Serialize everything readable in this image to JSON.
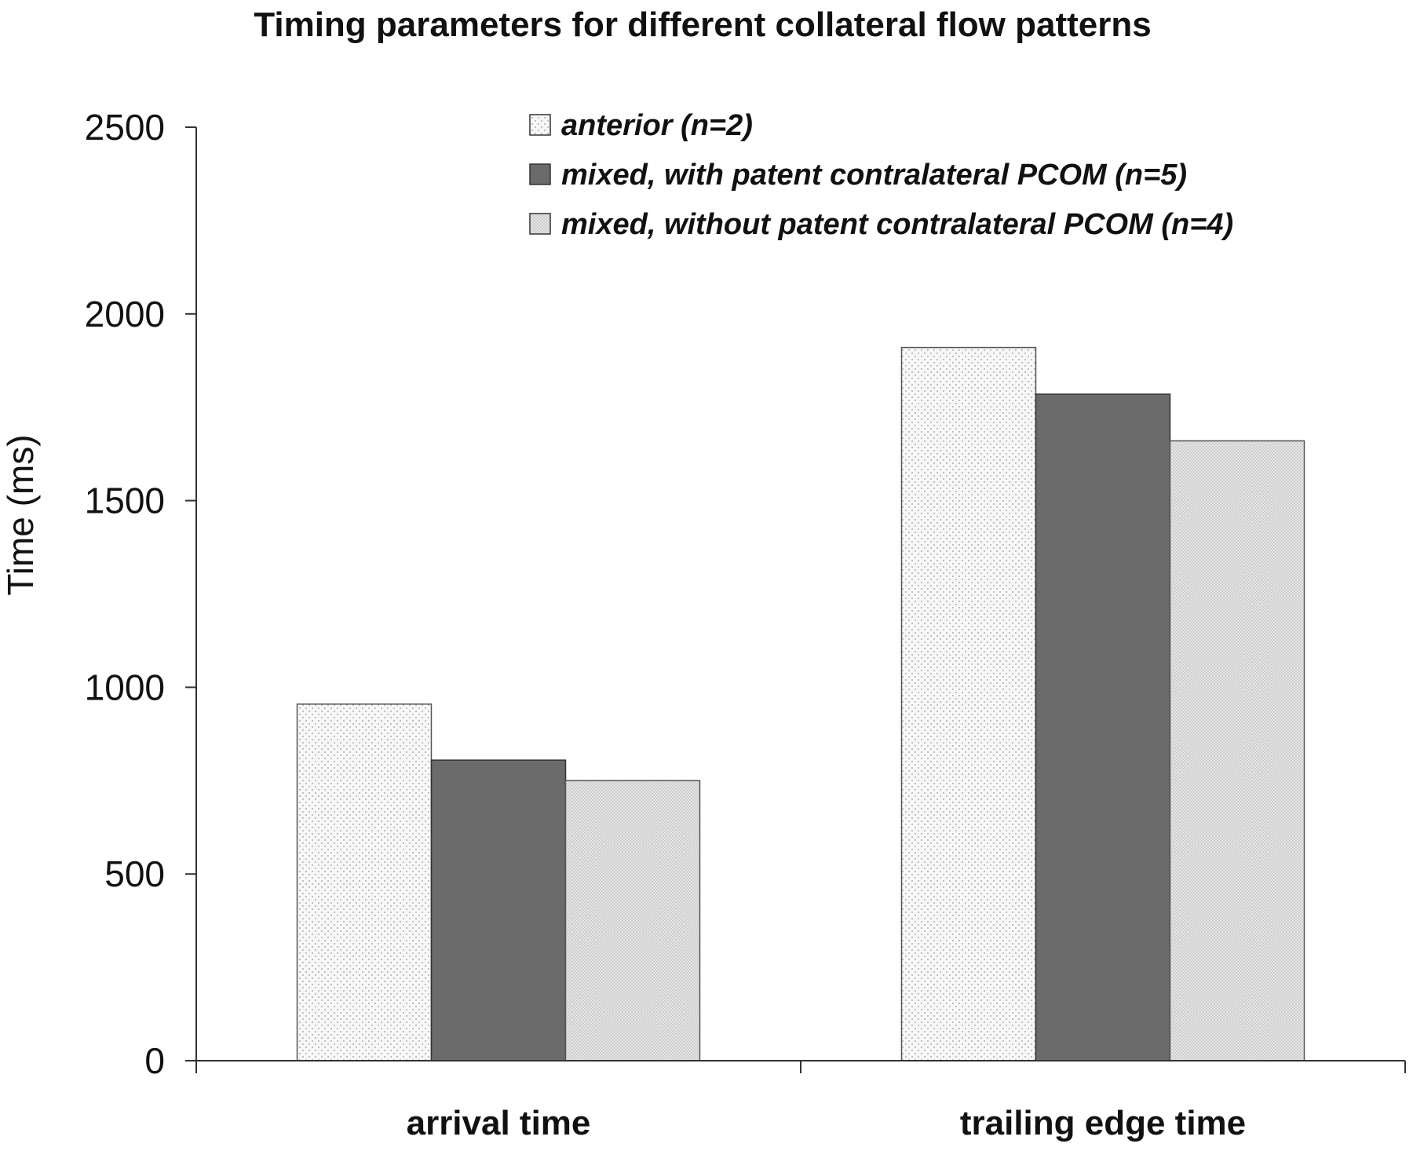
{
  "chart_data": {
    "type": "bar",
    "title": "Timing parameters for different collateral flow patterns",
    "xlabel": "",
    "ylabel": "Time (ms)",
    "ylim": [
      0,
      2500
    ],
    "yticks": [
      0,
      500,
      1000,
      1500,
      2000,
      2500
    ],
    "grid": false,
    "legend_position": "top-right",
    "categories": [
      "arrival time",
      "trailing edge time"
    ],
    "series": [
      {
        "name": "anterior (n=2)",
        "values": [
          955,
          1910
        ],
        "fill": "#f7f7f7",
        "pattern": "sparse-dots",
        "stroke": "#555555"
      },
      {
        "name": "mixed, with patent contralateral PCOM (n=5)",
        "values": [
          805,
          1785
        ],
        "fill": "#6b6b6b",
        "pattern": "none",
        "stroke": "#333333"
      },
      {
        "name": "mixed, without patent contralateral PCOM (n=4)",
        "values": [
          750,
          1660
        ],
        "fill": "#e2e2e2",
        "pattern": "dense-dots",
        "stroke": "#555555"
      }
    ]
  }
}
